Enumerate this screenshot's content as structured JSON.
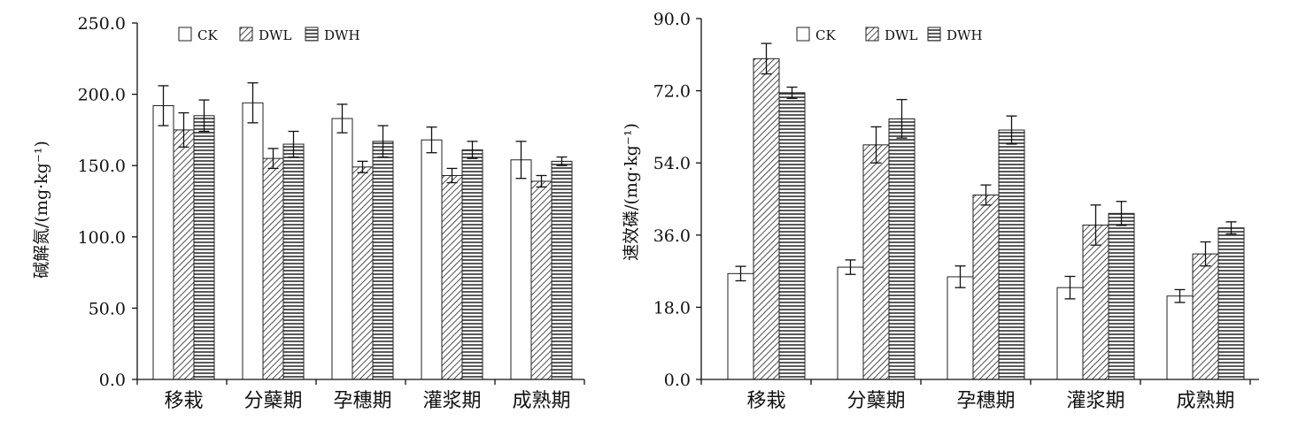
{
  "chart_data": [
    {
      "type": "bar",
      "ylabel": "碱解氮/(mg·kg⁻¹)",
      "ylim": [
        0,
        250
      ],
      "yticks": [
        "0.0",
        "50.0",
        "100.0",
        "150.0",
        "200.0",
        "250.0"
      ],
      "categories": [
        "移栽",
        "分蘖期",
        "孕穗期",
        "灌浆期",
        "成熟期"
      ],
      "legend": "top-left",
      "series": [
        {
          "name": "CK",
          "pattern": "blank",
          "values": [
            192,
            194,
            183,
            168,
            154
          ],
          "errors": [
            14,
            14,
            10,
            9,
            13
          ]
        },
        {
          "name": "DWL",
          "pattern": "diagonal",
          "values": [
            175,
            155,
            149,
            143,
            139
          ],
          "errors": [
            12,
            7,
            4,
            5,
            4
          ]
        },
        {
          "name": "DWH",
          "pattern": "horizontal",
          "values": [
            185,
            165,
            167,
            161,
            153
          ],
          "errors": [
            11,
            9,
            11,
            6,
            3
          ]
        }
      ]
    },
    {
      "type": "bar",
      "ylabel": "速效磷/(mg·kg⁻¹)",
      "ylim": [
        0,
        90
      ],
      "yticks": [
        "0.0",
        "18.0",
        "36.0",
        "54.0",
        "72.0",
        "90.0"
      ],
      "categories": [
        "移栽",
        "分蘖期",
        "孕穗期",
        "灌浆期",
        "成熟期"
      ],
      "legend": "top-left",
      "series": [
        {
          "name": "CK",
          "pattern": "blank",
          "values": [
            26.4,
            28.0,
            25.6,
            22.9,
            20.8
          ],
          "errors": [
            1.8,
            1.8,
            2.7,
            2.8,
            1.6
          ]
        },
        {
          "name": "DWL",
          "pattern": "diagonal",
          "values": [
            80.0,
            58.5,
            46.0,
            38.5,
            31.3
          ],
          "errors": [
            3.8,
            4.5,
            2.5,
            5.0,
            3.0
          ]
        },
        {
          "name": "DWH",
          "pattern": "horizontal",
          "values": [
            71.5,
            65.0,
            62.2,
            41.4,
            37.8
          ],
          "errors": [
            1.4,
            4.8,
            3.5,
            3.0,
            1.5
          ]
        }
      ]
    }
  ]
}
